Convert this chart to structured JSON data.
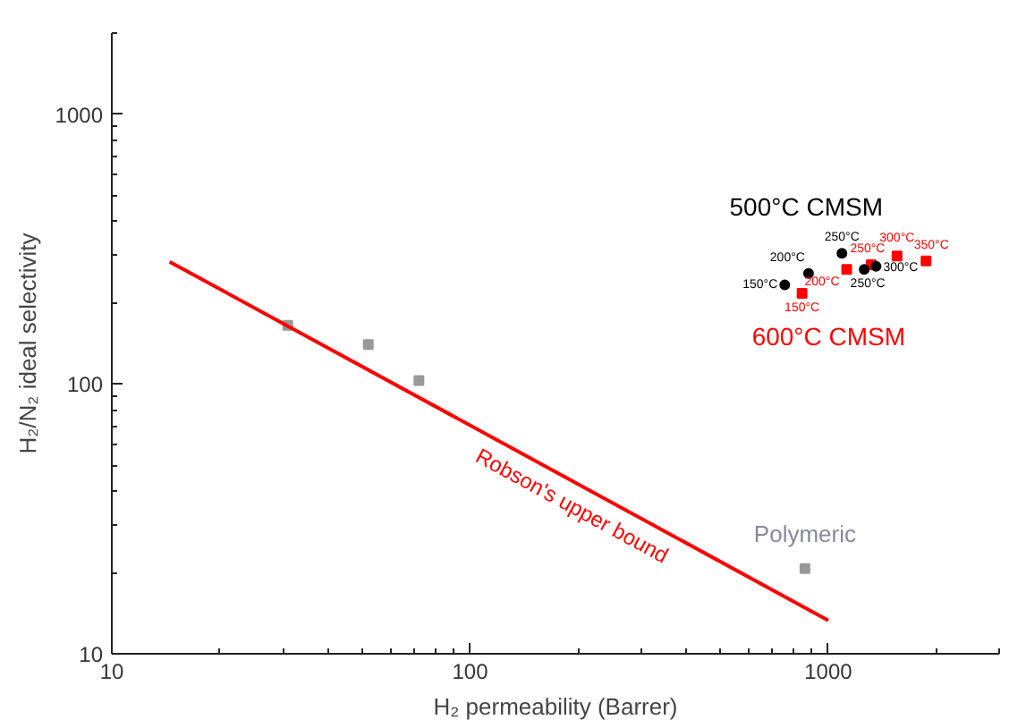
{
  "chart_data": {
    "type": "scatter",
    "xlabel": "H₂ permeability (Barrer)",
    "ylabel": "H₂/N₂ ideal selectivity",
    "log": "xy",
    "grid": false,
    "xlim": [
      10,
      3000
    ],
    "ylim": [
      10,
      2000
    ],
    "xticks": [
      10,
      100,
      1000
    ],
    "yticks": [
      10,
      100,
      1000
    ],
    "series": [
      {
        "name": "Robson's upper bound",
        "type": "line",
        "color": "#ff0000",
        "marker": "none",
        "line_style": "solid",
        "x": [
          14.5,
          1000
        ],
        "values": [
          284,
          13.3
        ]
      },
      {
        "name": "Polymeric",
        "color": "#999999",
        "marker": "square",
        "x": [
          31,
          52,
          72,
          861
        ],
        "values": [
          165,
          140,
          103,
          20.7
        ]
      },
      {
        "name": "500°C CMSM",
        "color": "#000000",
        "marker": "circle",
        "x": [
          756,
          881,
          1092,
          1360,
          1260
        ],
        "values": [
          233,
          257,
          305,
          273,
          266
        ]
      },
      {
        "name": "600°C CMSM",
        "color": "#ff0000",
        "marker": "square",
        "x": [
          845,
          1126,
          1318,
          1556,
          1875
        ],
        "values": [
          217,
          266,
          277,
          298,
          286
        ]
      }
    ],
    "annotations": [
      {
        "text": "150°C",
        "x": 756,
        "y": 233
      },
      {
        "text": "200°C",
        "x": 881,
        "y": 257
      },
      {
        "text": "250°C",
        "x": 1092,
        "y": 305
      },
      {
        "text": "300°C",
        "x": 1360,
        "y": 273
      },
      {
        "text": "250°C",
        "x": 1260,
        "y": 266
      },
      {
        "text": "150°C",
        "x": 845,
        "y": 217
      },
      {
        "text": "200°C",
        "x": 1126,
        "y": 266
      },
      {
        "text": "250°C",
        "x": 1318,
        "y": 277
      },
      {
        "text": "300°C",
        "x": 1556,
        "y": 298
      },
      {
        "text": "350°C",
        "x": 1875,
        "y": 286
      }
    ]
  }
}
